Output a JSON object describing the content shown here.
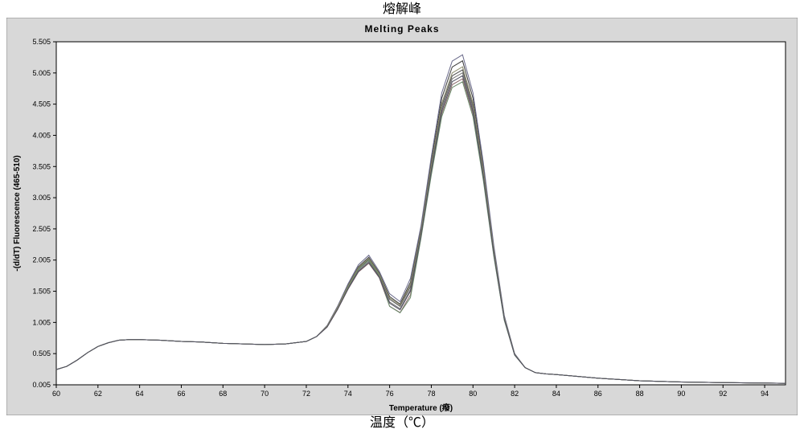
{
  "outer_top_label": "熔解峰",
  "outer_bottom_label": "温度（℃）",
  "panel_title": "Melting Peaks",
  "chart": {
    "type": "line",
    "background_color": "#ffffff",
    "panel_bg_color": "#d8d8d8",
    "panel_border_color": "#888888",
    "axis_color": "#000000",
    "tick_length": 4,
    "tick_fontsize": 9,
    "title_fontsize": 12,
    "axis_label_fontsize": 10,
    "line_width": 1,
    "xlim": [
      60,
      95
    ],
    "ylim": [
      0.005,
      5.505
    ],
    "xlabel": "Temperature (癈)",
    "ylabel": "-(d/dT) Fluorescence (465-510)",
    "xticks": [
      60,
      62,
      64,
      66,
      68,
      70,
      72,
      74,
      76,
      78,
      80,
      82,
      84,
      86,
      88,
      90,
      92,
      94
    ],
    "yticks": [
      0.005,
      0.505,
      1.005,
      1.505,
      2.005,
      2.505,
      3.005,
      3.505,
      4.005,
      4.505,
      5.005,
      5.505
    ],
    "series_colors": [
      "#3a3a3a",
      "#555555",
      "#707070",
      "#8a6a6a",
      "#6a6a8a",
      "#6a8a6a",
      "#8a8a6a",
      "#505060"
    ],
    "series_offsets": [
      {
        "dy": 0.0,
        "p1": 2.05,
        "v": 1.3,
        "p2": 5.2
      },
      {
        "dy": 0.0,
        "p1": 2.0,
        "v": 1.25,
        "p2": 5.05
      },
      {
        "dy": 0.0,
        "p1": 1.95,
        "v": 1.2,
        "p2": 5.0
      },
      {
        "dy": 0.0,
        "p1": 1.9,
        "v": 1.1,
        "p2": 4.9
      },
      {
        "dy": 0.0,
        "p1": 2.1,
        "v": 1.35,
        "p2": 5.3
      },
      {
        "dy": 0.0,
        "p1": 1.98,
        "v": 1.05,
        "p2": 4.85
      },
      {
        "dy": 0.0,
        "p1": 2.02,
        "v": 1.28,
        "p2": 5.1
      },
      {
        "dy": 0.0,
        "p1": 1.92,
        "v": 1.18,
        "p2": 4.95
      }
    ],
    "base_curve": [
      [
        60.0,
        0.25
      ],
      [
        60.5,
        0.3
      ],
      [
        61.0,
        0.4
      ],
      [
        61.5,
        0.52
      ],
      [
        62.0,
        0.62
      ],
      [
        62.5,
        0.68
      ],
      [
        63.0,
        0.72
      ],
      [
        63.5,
        0.73
      ],
      [
        64.0,
        0.73
      ],
      [
        65.0,
        0.72
      ],
      [
        66.0,
        0.7
      ],
      [
        67.0,
        0.69
      ],
      [
        68.0,
        0.67
      ],
      [
        69.0,
        0.66
      ],
      [
        70.0,
        0.65
      ],
      [
        71.0,
        0.66
      ],
      [
        72.0,
        0.7
      ],
      [
        72.5,
        0.78
      ],
      [
        73.0,
        0.95
      ],
      [
        73.5,
        1.25
      ],
      [
        74.0,
        1.6
      ],
      [
        74.5,
        1.9
      ],
      [
        75.0,
        2.05
      ],
      [
        75.5,
        1.8
      ],
      [
        76.0,
        1.42
      ],
      [
        76.5,
        1.3
      ],
      [
        77.0,
        1.65
      ],
      [
        77.5,
        2.5
      ],
      [
        78.0,
        3.6
      ],
      [
        78.5,
        4.6
      ],
      [
        79.0,
        5.1
      ],
      [
        79.5,
        5.2
      ],
      [
        80.0,
        4.6
      ],
      [
        80.5,
        3.5
      ],
      [
        81.0,
        2.2
      ],
      [
        81.5,
        1.1
      ],
      [
        82.0,
        0.5
      ],
      [
        82.5,
        0.28
      ],
      [
        83.0,
        0.2
      ],
      [
        83.5,
        0.18
      ],
      [
        84.0,
        0.17
      ],
      [
        85.0,
        0.14
      ],
      [
        86.0,
        0.11
      ],
      [
        87.0,
        0.09
      ],
      [
        88.0,
        0.07
      ],
      [
        90.0,
        0.05
      ],
      [
        92.0,
        0.04
      ],
      [
        95.0,
        0.03
      ]
    ]
  }
}
